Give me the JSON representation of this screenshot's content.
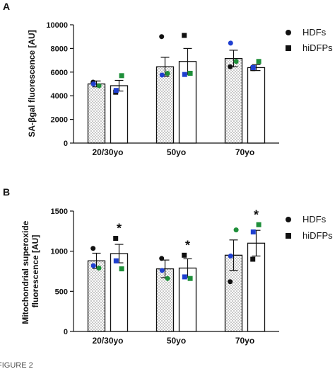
{
  "figure_caption": "FIGURE 2",
  "chart_data": [
    {
      "panel": "A",
      "type": "bar",
      "ylabel": "SA-βgal fluorescence [AU]",
      "xlabel": "",
      "ylim": [
        0,
        10000
      ],
      "yticks": [
        0,
        2000,
        4000,
        6000,
        8000,
        10000
      ],
      "categories": [
        "20/30yo",
        "50yo",
        "70yo"
      ],
      "legend_position": "right",
      "series": [
        {
          "name": "HDFs",
          "marker": "circle",
          "fill": "dotted",
          "values": [
            5000,
            6450,
            7150
          ],
          "sem": [
            250,
            800,
            700
          ],
          "points": [
            [
              5150,
              "black"
            ],
            [
              4850,
              "green"
            ],
            [
              5000,
              "blue"
            ],
            [
              9000,
              "black"
            ],
            [
              5900,
              "green"
            ],
            [
              5750,
              "blue"
            ],
            [
              6450,
              "black"
            ],
            [
              6900,
              "green"
            ],
            [
              8450,
              "blue"
            ]
          ]
        },
        {
          "name": "hiDFPs",
          "marker": "square",
          "fill": "white",
          "values": [
            4850,
            6900,
            6380
          ],
          "sem": [
            450,
            1100,
            250
          ],
          "points": [
            [
              4300,
              "black"
            ],
            [
              5700,
              "green"
            ],
            [
              4450,
              "blue"
            ],
            [
              9100,
              "black"
            ],
            [
              5900,
              "green"
            ],
            [
              5800,
              "blue"
            ],
            [
              6300,
              "black"
            ],
            [
              6900,
              "green"
            ],
            [
              6380,
              "blue"
            ]
          ]
        }
      ],
      "significance": []
    },
    {
      "panel": "B",
      "type": "bar",
      "ylabel": "Mitochondrial superoxide fluorescence [AU]",
      "xlabel": "",
      "ylim": [
        0,
        1500
      ],
      "yticks": [
        0,
        500,
        1000,
        1500
      ],
      "categories": [
        "20/30yo",
        "50yo",
        "70yo"
      ],
      "legend_position": "right",
      "series": [
        {
          "name": "HDFs",
          "marker": "circle",
          "fill": "dotted",
          "values": [
            880,
            780,
            950
          ],
          "sem": [
            95,
            110,
            190
          ],
          "points": [
            [
              1035,
              "black"
            ],
            [
              790,
              "green"
            ],
            [
              820,
              "blue"
            ],
            [
              910,
              "black"
            ],
            [
              660,
              "green"
            ],
            [
              760,
              "blue"
            ],
            [
              620,
              "black"
            ],
            [
              1265,
              "green"
            ],
            [
              940,
              "blue"
            ]
          ]
        },
        {
          "name": "hiDFPs",
          "marker": "square",
          "fill": "white",
          "values": [
            970,
            790,
            1100
          ],
          "sem": [
            115,
            115,
            160
          ],
          "points": [
            [
              1160,
              "black"
            ],
            [
              780,
              "green"
            ],
            [
              880,
              "blue"
            ],
            [
              950,
              "black"
            ],
            [
              660,
              "green"
            ],
            [
              680,
              "blue"
            ],
            [
              900,
              "black"
            ],
            [
              1330,
              "green"
            ],
            [
              1240,
              "blue"
            ]
          ]
        }
      ],
      "significance": [
        {
          "category": "20/30yo",
          "series": "hiDFPs",
          "label": "*"
        },
        {
          "category": "50yo",
          "series": "hiDFPs",
          "label": "*"
        },
        {
          "category": "70yo",
          "series": "hiDFPs",
          "label": "*"
        }
      ]
    }
  ],
  "colors": {
    "black": "#111111",
    "green": "#1f8f3a",
    "blue": "#1f3fd0"
  }
}
